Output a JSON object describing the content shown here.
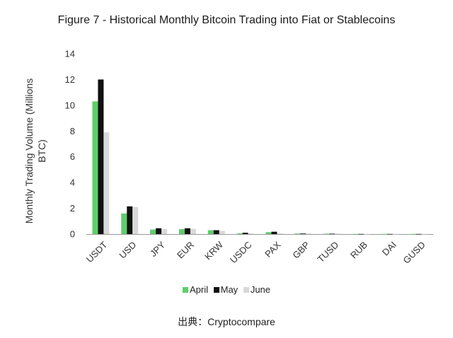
{
  "chart_data": {
    "type": "bar",
    "title": "Figure 7 - Historical Monthly Bitcoin Trading into Fiat or Stablecoins",
    "ylabel_lines": [
      "Monthly Trading Volume (Millions",
      "BTC)"
    ],
    "xlabel": "",
    "ylim": [
      0,
      14
    ],
    "yticks": [
      "0",
      "2",
      "4",
      "6",
      "8",
      "10",
      "12",
      "14"
    ],
    "grid": false,
    "legend_position": "bottom",
    "categories": [
      "USDT",
      "USD",
      "JPY",
      "EUR",
      "KRW",
      "USDC",
      "PAX",
      "GBP",
      "TUSD",
      "RUB",
      "DAI",
      "GUSD"
    ],
    "series": [
      {
        "name": "April",
        "color": "#5dcf6b",
        "values": [
          10.3,
          1.6,
          0.35,
          0.38,
          0.3,
          0.05,
          0.15,
          0.04,
          0.03,
          0.01,
          0.01,
          0.01
        ]
      },
      {
        "name": "May",
        "color": "#111111",
        "values": [
          12.0,
          2.15,
          0.45,
          0.45,
          0.3,
          0.1,
          0.18,
          0.04,
          0.03,
          0.01,
          0.01,
          0.01
        ]
      },
      {
        "name": "June",
        "color": "#d9d9d9",
        "values": [
          7.9,
          2.1,
          0.4,
          0.4,
          0.25,
          0.04,
          0.05,
          0.04,
          0.03,
          0.01,
          0.01,
          0.01
        ]
      }
    ]
  },
  "source_text": "出典：Cryptocompare"
}
